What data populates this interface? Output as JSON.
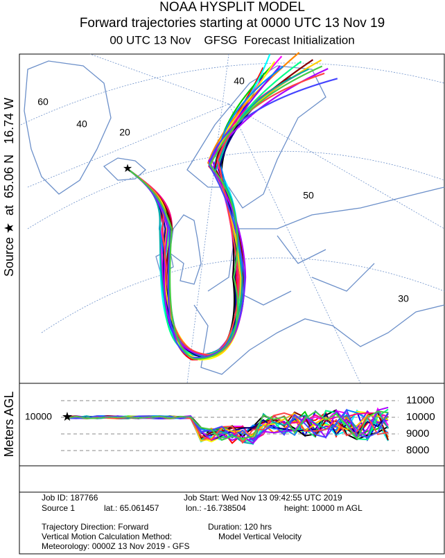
{
  "header": {
    "title": "NOAA HYSPLIT MODEL",
    "subtitle": "Forward trajectories starting at 0000 UTC 13 Nov 19",
    "line3": "00 UTC 13 Nov    GFSG  Forecast Initialization"
  },
  "source_label": "Source ★  at  65.06 N   16.74 W",
  "map": {
    "grid_labels": [
      "60",
      "40",
      "20",
      "40",
      "50",
      "30"
    ]
  },
  "height_panel": {
    "ylabel": "Meters AGL",
    "yticks": [
      8000,
      9000,
      10000,
      11000
    ],
    "source_height": 10000
  },
  "footer": {
    "job_id": "Job ID: 187766",
    "job_start": "Job Start: Wed Nov 13 09:42:55 UTC 2019",
    "source": "Source 1",
    "lat": "lat.: 65.061457",
    "lon": "lon.: -16.738504",
    "height": "height: 10000 m AGL",
    "direction": "Trajectory Direction: Forward",
    "duration": "Duration: 120 hrs",
    "method_label": "Vertical Motion Calculation Method:",
    "method": "Model Vertical Velocity",
    "meteorology": "Meteorology: 0000Z 13 Nov 2019 - GFS"
  }
}
